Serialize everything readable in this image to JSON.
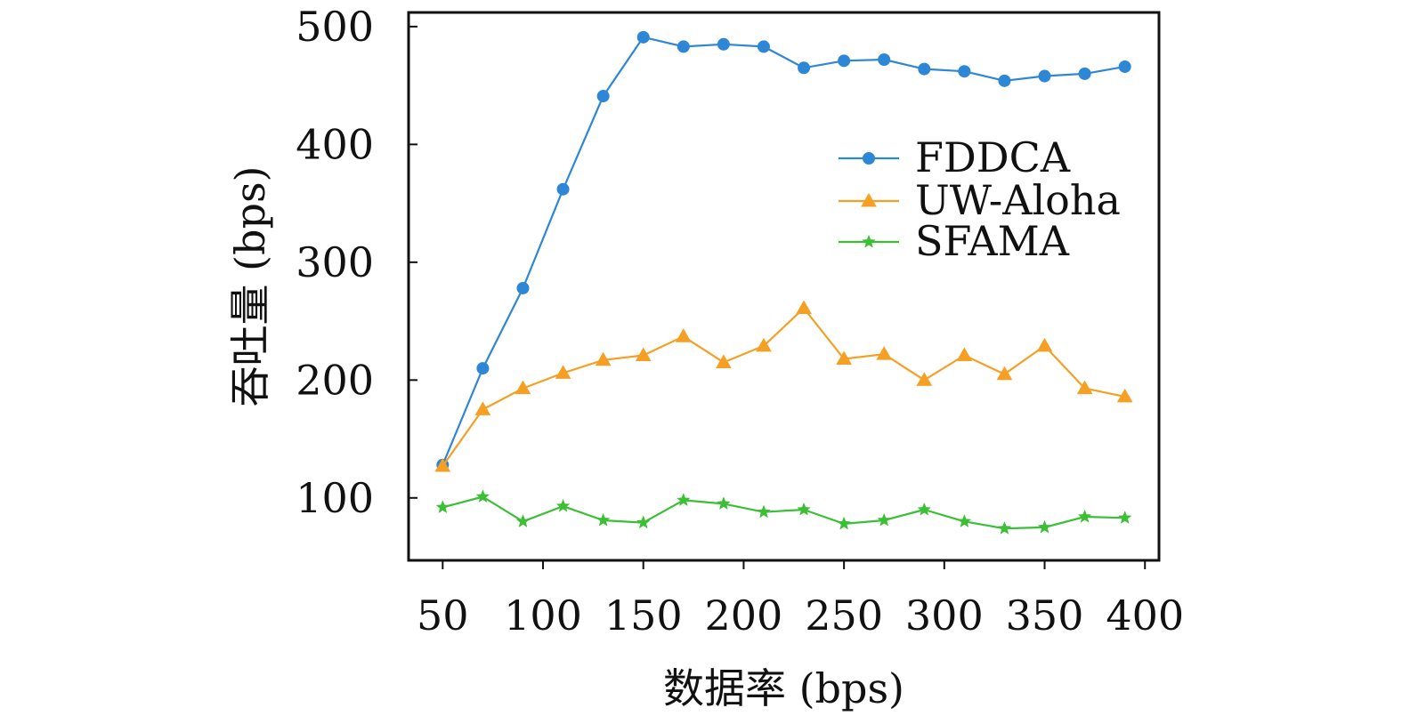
{
  "chart_data": {
    "type": "line",
    "title": "",
    "xlabel": "数据率 (bps)",
    "ylabel": "吞吐量 (bps)",
    "xlim": [
      33,
      407
    ],
    "ylim": [
      47,
      512
    ],
    "xticks": [
      50,
      100,
      150,
      200,
      250,
      300,
      350,
      400
    ],
    "yticks": [
      100,
      200,
      300,
      400,
      500
    ],
    "grid": false,
    "legend_position": "upper right",
    "x": [
      50,
      70,
      90,
      110,
      130,
      150,
      170,
      190,
      210,
      230,
      250,
      270,
      290,
      310,
      330,
      350,
      370,
      390
    ],
    "series": [
      {
        "name": "FDDCA",
        "color": "#2e86d6",
        "marker": "circle",
        "values": [
          128,
          210,
          278,
          362,
          441,
          491,
          483,
          485,
          483,
          465,
          471,
          472,
          464,
          462,
          454,
          458,
          460,
          466
        ]
      },
      {
        "name": "UW-Aloha",
        "color": "#f5a024",
        "marker": "triangle",
        "values": [
          127,
          175,
          193,
          206,
          217,
          221,
          237,
          215,
          229,
          261,
          218,
          222,
          200,
          221,
          205,
          229,
          193,
          186
        ]
      },
      {
        "name": "SFAMA",
        "color": "#3bbf35",
        "marker": "star",
        "values": [
          92,
          101,
          80,
          93,
          81,
          79,
          98,
          95,
          88,
          90,
          78,
          81,
          90,
          80,
          74,
          75,
          84,
          83
        ]
      }
    ]
  }
}
